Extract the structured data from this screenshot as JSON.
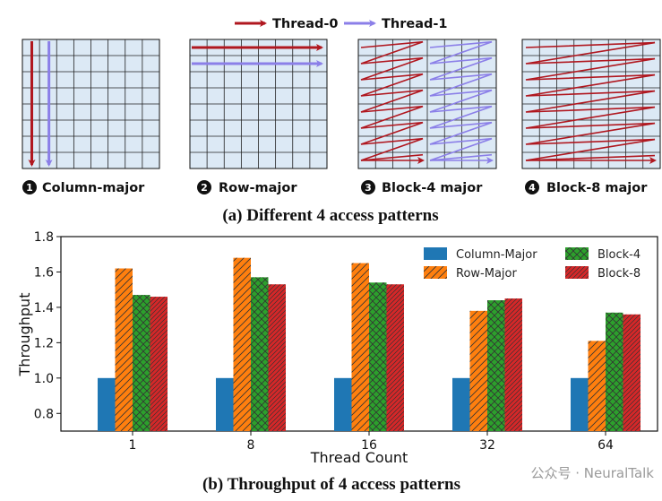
{
  "top": {
    "legend": [
      {
        "label": "Thread-0",
        "color": "#b0171f"
      },
      {
        "label": "Thread-1",
        "color": "#8b7fe8"
      }
    ],
    "patterns": [
      {
        "number": "1",
        "label": "Column-major"
      },
      {
        "number": "2",
        "label": "Row-major"
      },
      {
        "number": "3",
        "label": "Block-4 major"
      },
      {
        "number": "4",
        "label": "Block-8 major"
      }
    ],
    "caption": "(a) Different 4 access patterns",
    "grid_fill": "#dce9f5"
  },
  "chart_data": {
    "type": "bar",
    "xlabel": "Thread Count",
    "ylabel": "Throughput",
    "ylim": [
      0.7,
      1.8
    ],
    "yticks": [
      "0.8",
      "1.0",
      "1.2",
      "1.4",
      "1.6",
      "1.8"
    ],
    "categories": [
      "1",
      "8",
      "16",
      "32",
      "64"
    ],
    "series": [
      {
        "name": "Column-Major",
        "color": "#1f77b4",
        "hatch": "none",
        "values": [
          1.0,
          1.0,
          1.0,
          1.0,
          1.0
        ]
      },
      {
        "name": "Row-Major",
        "color": "#ff7f0e",
        "hatch": "diagonal",
        "values": [
          1.62,
          1.68,
          1.65,
          1.38,
          1.21
        ]
      },
      {
        "name": "Block-4",
        "color": "#2ca02c",
        "hatch": "cross",
        "values": [
          1.47,
          1.57,
          1.54,
          1.44,
          1.37
        ]
      },
      {
        "name": "Block-8",
        "color": "#d62728",
        "hatch": "dense-diagonal",
        "values": [
          1.46,
          1.53,
          1.53,
          1.45,
          1.36
        ]
      }
    ],
    "legend_position": "top-right",
    "grid": false
  },
  "bottom_caption": "(b) Throughput of 4 access patterns",
  "watermark": "公众号 · NeuralTalk"
}
